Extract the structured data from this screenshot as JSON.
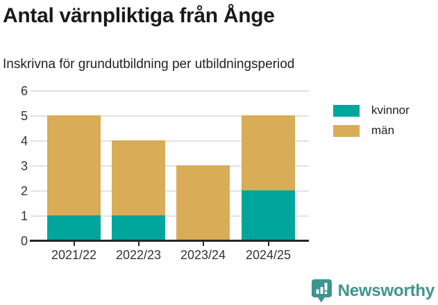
{
  "title": "Antal värnpliktiga från Ånge",
  "subtitle": "Inskrivna för grundutbildning per utbildningsperiod",
  "footer": {
    "brand": "Newsworthy"
  },
  "colors": {
    "kvinnor": "#00a69b",
    "man": "#d9ac57",
    "brand_teal": "#3e948e",
    "grid": "#e2e2e2",
    "axis": "#262626",
    "text_dark": "#1a1a1a",
    "text_axis": "#333333"
  },
  "chart_data": {
    "type": "bar",
    "stacked": true,
    "title": "Antal värnpliktiga från Ånge",
    "subtitle": "Inskrivna för grundutbildning per utbildningsperiod",
    "categories": [
      "2021/22",
      "2022/23",
      "2023/24",
      "2024/25"
    ],
    "series": [
      {
        "name": "kvinnor",
        "color": "#00a69b",
        "values": [
          1,
          1,
          0,
          2
        ]
      },
      {
        "name": "män",
        "color": "#d9ac57",
        "values": [
          4,
          3,
          3,
          3
        ]
      }
    ],
    "totals": [
      5,
      4,
      3,
      5
    ],
    "xlabel": "",
    "ylabel": "",
    "ylim": [
      0,
      6
    ],
    "yticks": [
      0,
      1,
      2,
      3,
      4,
      5,
      6
    ],
    "grid": true,
    "legend_position": "top-right"
  }
}
